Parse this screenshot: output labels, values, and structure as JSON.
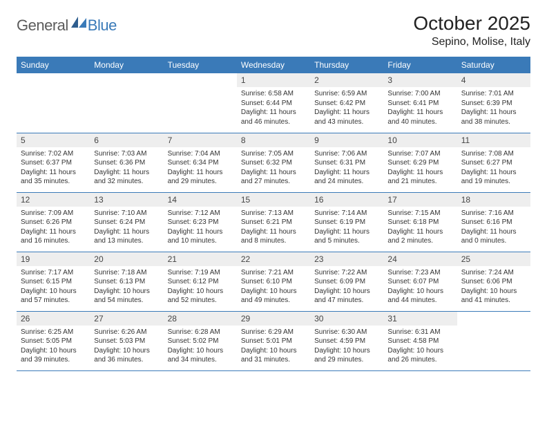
{
  "logo": {
    "general": "General",
    "blue": "Blue"
  },
  "title": "October 2025",
  "location": "Sepino, Molise, Italy",
  "colors": {
    "header_bg": "#3a7ab8",
    "header_text": "#ffffff",
    "daynum_bg": "#eeeeee",
    "border": "#3a7ab8",
    "logo_gray": "#5b5b5b",
    "logo_blue": "#3a7ab8"
  },
  "weekdays": [
    "Sunday",
    "Monday",
    "Tuesday",
    "Wednesday",
    "Thursday",
    "Friday",
    "Saturday"
  ],
  "weeks": [
    [
      null,
      null,
      null,
      {
        "n": "1",
        "sr": "Sunrise: 6:58 AM",
        "ss": "Sunset: 6:44 PM",
        "d1": "Daylight: 11 hours",
        "d2": "and 46 minutes."
      },
      {
        "n": "2",
        "sr": "Sunrise: 6:59 AM",
        "ss": "Sunset: 6:42 PM",
        "d1": "Daylight: 11 hours",
        "d2": "and 43 minutes."
      },
      {
        "n": "3",
        "sr": "Sunrise: 7:00 AM",
        "ss": "Sunset: 6:41 PM",
        "d1": "Daylight: 11 hours",
        "d2": "and 40 minutes."
      },
      {
        "n": "4",
        "sr": "Sunrise: 7:01 AM",
        "ss": "Sunset: 6:39 PM",
        "d1": "Daylight: 11 hours",
        "d2": "and 38 minutes."
      }
    ],
    [
      {
        "n": "5",
        "sr": "Sunrise: 7:02 AM",
        "ss": "Sunset: 6:37 PM",
        "d1": "Daylight: 11 hours",
        "d2": "and 35 minutes."
      },
      {
        "n": "6",
        "sr": "Sunrise: 7:03 AM",
        "ss": "Sunset: 6:36 PM",
        "d1": "Daylight: 11 hours",
        "d2": "and 32 minutes."
      },
      {
        "n": "7",
        "sr": "Sunrise: 7:04 AM",
        "ss": "Sunset: 6:34 PM",
        "d1": "Daylight: 11 hours",
        "d2": "and 29 minutes."
      },
      {
        "n": "8",
        "sr": "Sunrise: 7:05 AM",
        "ss": "Sunset: 6:32 PM",
        "d1": "Daylight: 11 hours",
        "d2": "and 27 minutes."
      },
      {
        "n": "9",
        "sr": "Sunrise: 7:06 AM",
        "ss": "Sunset: 6:31 PM",
        "d1": "Daylight: 11 hours",
        "d2": "and 24 minutes."
      },
      {
        "n": "10",
        "sr": "Sunrise: 7:07 AM",
        "ss": "Sunset: 6:29 PM",
        "d1": "Daylight: 11 hours",
        "d2": "and 21 minutes."
      },
      {
        "n": "11",
        "sr": "Sunrise: 7:08 AM",
        "ss": "Sunset: 6:27 PM",
        "d1": "Daylight: 11 hours",
        "d2": "and 19 minutes."
      }
    ],
    [
      {
        "n": "12",
        "sr": "Sunrise: 7:09 AM",
        "ss": "Sunset: 6:26 PM",
        "d1": "Daylight: 11 hours",
        "d2": "and 16 minutes."
      },
      {
        "n": "13",
        "sr": "Sunrise: 7:10 AM",
        "ss": "Sunset: 6:24 PM",
        "d1": "Daylight: 11 hours",
        "d2": "and 13 minutes."
      },
      {
        "n": "14",
        "sr": "Sunrise: 7:12 AM",
        "ss": "Sunset: 6:23 PM",
        "d1": "Daylight: 11 hours",
        "d2": "and 10 minutes."
      },
      {
        "n": "15",
        "sr": "Sunrise: 7:13 AM",
        "ss": "Sunset: 6:21 PM",
        "d1": "Daylight: 11 hours",
        "d2": "and 8 minutes."
      },
      {
        "n": "16",
        "sr": "Sunrise: 7:14 AM",
        "ss": "Sunset: 6:19 PM",
        "d1": "Daylight: 11 hours",
        "d2": "and 5 minutes."
      },
      {
        "n": "17",
        "sr": "Sunrise: 7:15 AM",
        "ss": "Sunset: 6:18 PM",
        "d1": "Daylight: 11 hours",
        "d2": "and 2 minutes."
      },
      {
        "n": "18",
        "sr": "Sunrise: 7:16 AM",
        "ss": "Sunset: 6:16 PM",
        "d1": "Daylight: 11 hours",
        "d2": "and 0 minutes."
      }
    ],
    [
      {
        "n": "19",
        "sr": "Sunrise: 7:17 AM",
        "ss": "Sunset: 6:15 PM",
        "d1": "Daylight: 10 hours",
        "d2": "and 57 minutes."
      },
      {
        "n": "20",
        "sr": "Sunrise: 7:18 AM",
        "ss": "Sunset: 6:13 PM",
        "d1": "Daylight: 10 hours",
        "d2": "and 54 minutes."
      },
      {
        "n": "21",
        "sr": "Sunrise: 7:19 AM",
        "ss": "Sunset: 6:12 PM",
        "d1": "Daylight: 10 hours",
        "d2": "and 52 minutes."
      },
      {
        "n": "22",
        "sr": "Sunrise: 7:21 AM",
        "ss": "Sunset: 6:10 PM",
        "d1": "Daylight: 10 hours",
        "d2": "and 49 minutes."
      },
      {
        "n": "23",
        "sr": "Sunrise: 7:22 AM",
        "ss": "Sunset: 6:09 PM",
        "d1": "Daylight: 10 hours",
        "d2": "and 47 minutes."
      },
      {
        "n": "24",
        "sr": "Sunrise: 7:23 AM",
        "ss": "Sunset: 6:07 PM",
        "d1": "Daylight: 10 hours",
        "d2": "and 44 minutes."
      },
      {
        "n": "25",
        "sr": "Sunrise: 7:24 AM",
        "ss": "Sunset: 6:06 PM",
        "d1": "Daylight: 10 hours",
        "d2": "and 41 minutes."
      }
    ],
    [
      {
        "n": "26",
        "sr": "Sunrise: 6:25 AM",
        "ss": "Sunset: 5:05 PM",
        "d1": "Daylight: 10 hours",
        "d2": "and 39 minutes."
      },
      {
        "n": "27",
        "sr": "Sunrise: 6:26 AM",
        "ss": "Sunset: 5:03 PM",
        "d1": "Daylight: 10 hours",
        "d2": "and 36 minutes."
      },
      {
        "n": "28",
        "sr": "Sunrise: 6:28 AM",
        "ss": "Sunset: 5:02 PM",
        "d1": "Daylight: 10 hours",
        "d2": "and 34 minutes."
      },
      {
        "n": "29",
        "sr": "Sunrise: 6:29 AM",
        "ss": "Sunset: 5:01 PM",
        "d1": "Daylight: 10 hours",
        "d2": "and 31 minutes."
      },
      {
        "n": "30",
        "sr": "Sunrise: 6:30 AM",
        "ss": "Sunset: 4:59 PM",
        "d1": "Daylight: 10 hours",
        "d2": "and 29 minutes."
      },
      {
        "n": "31",
        "sr": "Sunrise: 6:31 AM",
        "ss": "Sunset: 4:58 PM",
        "d1": "Daylight: 10 hours",
        "d2": "and 26 minutes."
      },
      null
    ]
  ]
}
